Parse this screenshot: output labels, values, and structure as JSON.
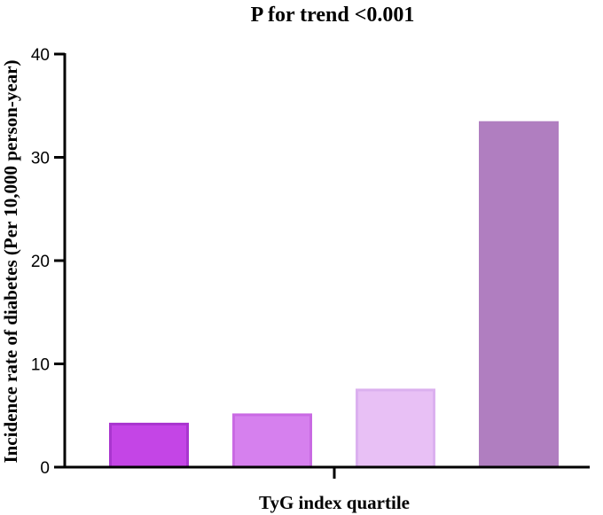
{
  "chart_data": {
    "type": "bar",
    "title": "P for trend <0.001",
    "xlabel": "TyG index quartile",
    "ylabel": "Incidence rate of diabetes (Per 10,000 person-year)",
    "categories": [
      "",
      "",
      "",
      ""
    ],
    "values": [
      4.3,
      5.2,
      7.6,
      33.5
    ],
    "ylim": [
      0,
      40
    ],
    "yticks": [
      0,
      10,
      20,
      30,
      40
    ],
    "grid": false,
    "legend": "none",
    "colors": {
      "fills": [
        "#c445e6",
        "#d680ee",
        "#e8c0f5",
        "#b07ec0"
      ],
      "strokes": [
        "#a935cf",
        "#c96ae3",
        "#dbb0ef",
        "#b07ec0"
      ],
      "axis": "#000000"
    }
  }
}
